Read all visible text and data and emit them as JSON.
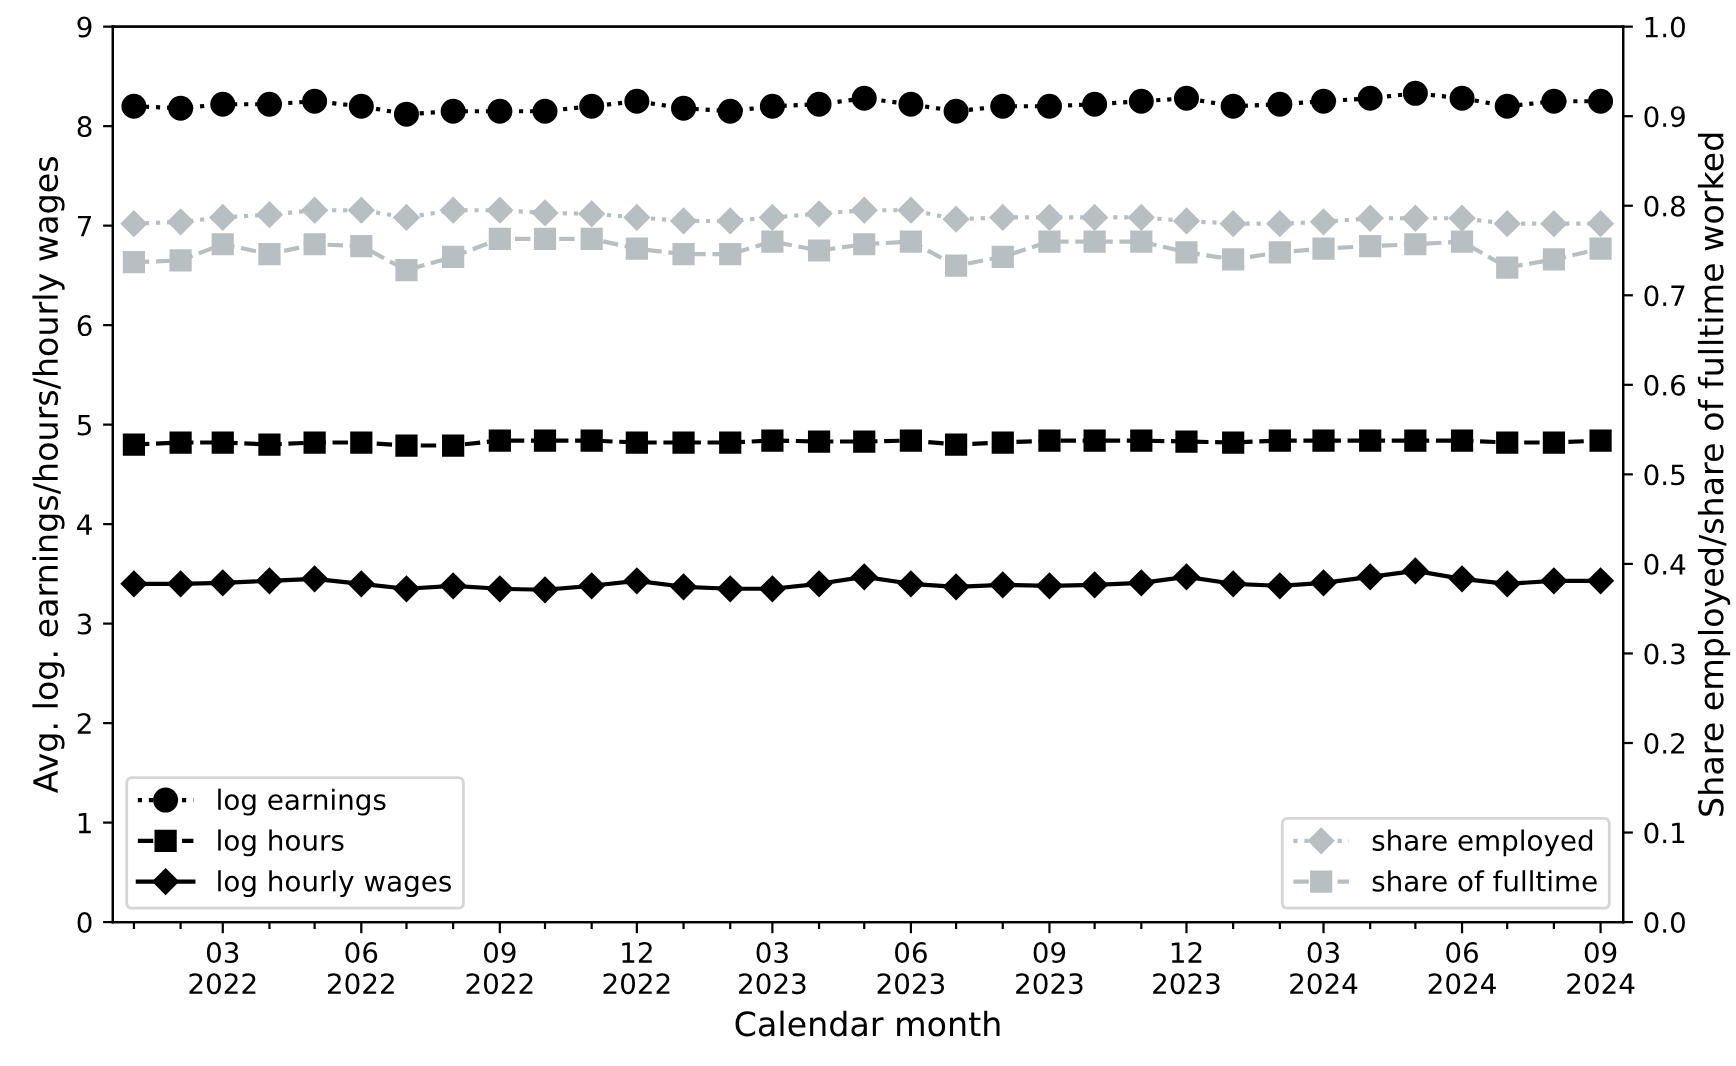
{
  "chart_data": {
    "type": "line",
    "xlabel": "Calendar month",
    "ylabel": "Avg. log. earnings/hours/hourly wages",
    "y2label": "Share employed/share of fulltime worked",
    "x": [
      "2022-01",
      "2022-02",
      "2022-03",
      "2022-04",
      "2022-05",
      "2022-06",
      "2022-07",
      "2022-08",
      "2022-09",
      "2022-10",
      "2022-11",
      "2022-12",
      "2023-01",
      "2023-02",
      "2023-03",
      "2023-04",
      "2023-05",
      "2023-06",
      "2023-07",
      "2023-08",
      "2023-09",
      "2023-10",
      "2023-11",
      "2023-12",
      "2024-01",
      "2024-02",
      "2024-03",
      "2024-04",
      "2024-05",
      "2024-06",
      "2024-07",
      "2024-08",
      "2024-09"
    ],
    "xlim": [
      "2021-12-18",
      "2024-09-16"
    ],
    "xticks": [
      {
        "value": "2022-01",
        "label": null
      },
      {
        "value": "2022-02",
        "label": null
      },
      {
        "value": "2022-03",
        "label": "03\n2022"
      },
      {
        "value": "2022-04",
        "label": null
      },
      {
        "value": "2022-05",
        "label": null
      },
      {
        "value": "2022-06",
        "label": "06\n2022"
      },
      {
        "value": "2022-07",
        "label": null
      },
      {
        "value": "2022-08",
        "label": null
      },
      {
        "value": "2022-09",
        "label": "09\n2022"
      },
      {
        "value": "2022-10",
        "label": null
      },
      {
        "value": "2022-11",
        "label": null
      },
      {
        "value": "2022-12",
        "label": "12\n2022"
      },
      {
        "value": "2023-01",
        "label": null
      },
      {
        "value": "2023-02",
        "label": null
      },
      {
        "value": "2023-03",
        "label": "03\n2023"
      },
      {
        "value": "2023-04",
        "label": null
      },
      {
        "value": "2023-05",
        "label": null
      },
      {
        "value": "2023-06",
        "label": "06\n2023"
      },
      {
        "value": "2023-07",
        "label": null
      },
      {
        "value": "2023-08",
        "label": null
      },
      {
        "value": "2023-09",
        "label": "09\n2023"
      },
      {
        "value": "2023-10",
        "label": null
      },
      {
        "value": "2023-11",
        "label": null
      },
      {
        "value": "2023-12",
        "label": "12\n2023"
      },
      {
        "value": "2024-01",
        "label": null
      },
      {
        "value": "2024-02",
        "label": null
      },
      {
        "value": "2024-03",
        "label": "03\n2024"
      },
      {
        "value": "2024-04",
        "label": null
      },
      {
        "value": "2024-05",
        "label": null
      },
      {
        "value": "2024-06",
        "label": "06\n2024"
      },
      {
        "value": "2024-07",
        "label": null
      },
      {
        "value": "2024-08",
        "label": null
      },
      {
        "value": "2024-09",
        "label": "09\n2024"
      }
    ],
    "ylim": [
      0,
      9
    ],
    "yticks": [
      0,
      1,
      2,
      3,
      4,
      5,
      6,
      7,
      8,
      9
    ],
    "y2lim": [
      0,
      1
    ],
    "y2ticks": [
      {
        "value": 0,
        "label": "0.0"
      },
      {
        "value": 0.1,
        "label": "0.1"
      },
      {
        "value": 0.2,
        "label": "0.2"
      },
      {
        "value": 0.3,
        "label": "0.3"
      },
      {
        "value": 0.4,
        "label": "0.4"
      },
      {
        "value": 0.5,
        "label": "0.5"
      },
      {
        "value": 0.6,
        "label": "0.6"
      },
      {
        "value": 0.7,
        "label": "0.7"
      },
      {
        "value": 0.8,
        "label": "0.8"
      },
      {
        "value": 0.9,
        "label": "0.9"
      },
      {
        "value": 1,
        "label": "1.0"
      }
    ],
    "grid": false,
    "legend": "bottom left",
    "series": [
      {
        "name": "log earnings",
        "color": "#000000",
        "marker": "circle",
        "line_style": "dotted",
        "values": [
          8.2,
          8.18,
          8.22,
          8.22,
          8.25,
          8.2,
          8.12,
          8.15,
          8.15,
          8.15,
          8.2,
          8.25,
          8.18,
          8.15,
          8.2,
          8.22,
          8.28,
          8.22,
          8.15,
          8.2,
          8.2,
          8.22,
          8.25,
          8.28,
          8.2,
          8.22,
          8.25,
          8.28,
          8.33,
          8.28,
          8.2,
          8.25,
          8.25
        ]
      },
      {
        "name": "log hours",
        "color": "#000000",
        "marker": "square",
        "line_style": "dashed",
        "values": [
          4.8,
          4.82,
          4.82,
          4.8,
          4.82,
          4.82,
          4.79,
          4.79,
          4.84,
          4.84,
          4.84,
          4.82,
          4.82,
          4.82,
          4.84,
          4.83,
          4.83,
          4.84,
          4.8,
          4.82,
          4.84,
          4.84,
          4.84,
          4.83,
          4.82,
          4.84,
          4.84,
          4.84,
          4.84,
          4.84,
          4.82,
          4.82,
          4.84
        ]
      },
      {
        "name": "log hourly wages",
        "color": "#000000",
        "marker": "diamond",
        "line_style": "solid",
        "values": [
          3.4,
          3.4,
          3.41,
          3.43,
          3.45,
          3.4,
          3.35,
          3.38,
          3.35,
          3.34,
          3.38,
          3.43,
          3.37,
          3.35,
          3.35,
          3.4,
          3.47,
          3.4,
          3.37,
          3.39,
          3.38,
          3.39,
          3.41,
          3.47,
          3.4,
          3.38,
          3.41,
          3.47,
          3.53,
          3.45,
          3.4,
          3.43,
          3.43
        ]
      },
      {
        "name": "share employed",
        "color": "#b8bfc2",
        "marker": "diamond",
        "line_style": "dotted",
        "axis": "y2",
        "values": [
          0.78,
          0.782,
          0.787,
          0.79,
          0.795,
          0.795,
          0.787,
          0.795,
          0.795,
          0.792,
          0.791,
          0.787,
          0.783,
          0.783,
          0.787,
          0.791,
          0.795,
          0.795,
          0.785,
          0.787,
          0.787,
          0.787,
          0.787,
          0.783,
          0.78,
          0.78,
          0.782,
          0.786,
          0.786,
          0.786,
          0.78,
          0.78,
          0.78
        ]
      },
      {
        "name": "share of fulltime",
        "color": "#b8bfc2",
        "marker": "square",
        "line_style": "dashed",
        "axis": "y2",
        "values": [
          0.737,
          0.739,
          0.757,
          0.746,
          0.757,
          0.755,
          0.728,
          0.743,
          0.763,
          0.763,
          0.763,
          0.752,
          0.746,
          0.746,
          0.76,
          0.75,
          0.757,
          0.76,
          0.733,
          0.743,
          0.76,
          0.76,
          0.76,
          0.748,
          0.74,
          0.748,
          0.752,
          0.755,
          0.757,
          0.76,
          0.731,
          0.74,
          0.752
        ]
      }
    ]
  }
}
